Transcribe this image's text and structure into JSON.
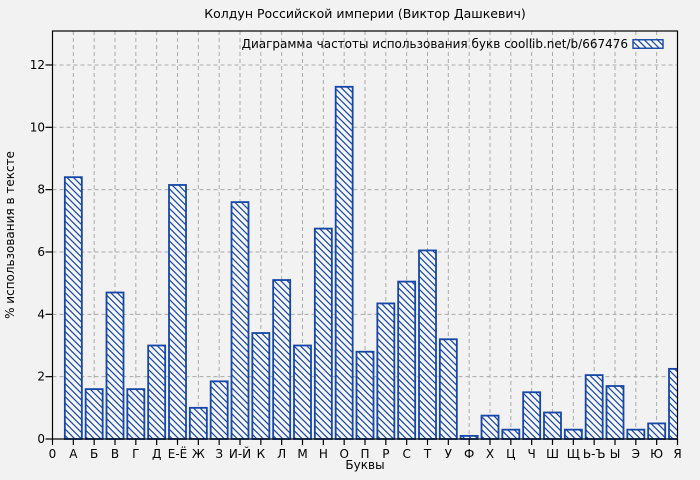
{
  "window": {
    "title": "Колдун Российской империи (Виктор Дашкевич)"
  },
  "chart_data": {
    "type": "bar",
    "title": "Колдун Российской империи (Виктор Дашкевич)",
    "legend": "Диаграмма частоты использования букв coollib.net/b/667476",
    "legend_position": "top-right-inside",
    "xlabel": "Буквы",
    "ylabel": "% использования в тексте",
    "x_origin_label": "0",
    "categories": [
      "А",
      "Б",
      "В",
      "Г",
      "Д",
      "Е-Ё",
      "Ж",
      "З",
      "И-Й",
      "К",
      "Л",
      "М",
      "Н",
      "О",
      "П",
      "Р",
      "С",
      "Т",
      "У",
      "Ф",
      "Х",
      "Ц",
      "Ч",
      "Ш",
      "Щ",
      "Ь-Ъ",
      "Ы",
      "Э",
      "Ю",
      "Я"
    ],
    "values": [
      8.4,
      1.6,
      4.7,
      1.6,
      3.0,
      8.15,
      1.0,
      1.85,
      7.6,
      3.4,
      5.1,
      3.0,
      6.75,
      11.3,
      2.8,
      4.35,
      5.05,
      6.05,
      3.2,
      0.1,
      0.75,
      0.3,
      1.5,
      0.85,
      0.3,
      2.05,
      1.7,
      0.3,
      0.5,
      2.25
    ],
    "ylim": [
      0,
      13.09
    ],
    "yticks": [
      0,
      2,
      4,
      6,
      8,
      10,
      12
    ],
    "grid": true,
    "bar_style": "blue-hatched"
  },
  "colors": {
    "accent": "#1547a8",
    "grid": "#a9a9a9",
    "frame": "#000000",
    "text": "#000000",
    "bar_fill": "#f6f6f6",
    "background": "#f2f2f2"
  }
}
